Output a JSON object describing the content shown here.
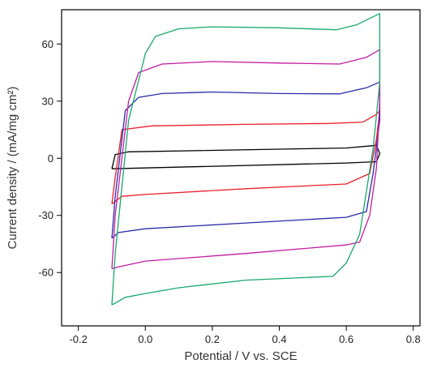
{
  "chart_data": {
    "type": "line",
    "title": "",
    "xlabel": "Potential / V vs. SCE",
    "ylabel": "Current density / (mA/mg cm²)",
    "xlim": [
      -0.25,
      0.82
    ],
    "ylim": [
      -88,
      78
    ],
    "xticks": [
      -0.2,
      0.0,
      0.2,
      0.4,
      0.6,
      0.8
    ],
    "xtick_labels": [
      "-0.2",
      "0.0",
      "0.2",
      "0.4",
      "0.6",
      "0.8"
    ],
    "yticks": [
      -60,
      -30,
      0,
      30,
      60
    ],
    "ytick_labels": [
      "-60",
      "-30",
      "0",
      "30",
      "60"
    ],
    "legend": "none",
    "grid": false,
    "series": [
      {
        "color": "#000000",
        "x": [
          -0.1,
          0.6,
          0.69,
          0.7,
          0.69,
          0.6,
          -0.05,
          -0.09,
          -0.1
        ],
        "y": [
          -5.5,
          -2.5,
          -1.8,
          2.5,
          6.8,
          5.4,
          3.4,
          2.0,
          -5.5
        ]
      },
      {
        "color": "#e8202a",
        "x": [
          -0.1,
          -0.09,
          -0.07,
          0.02,
          0.3,
          0.55,
          0.65,
          0.69,
          0.7,
          0.69,
          0.67,
          0.6,
          0.3,
          0.0,
          -0.07,
          -0.1
        ],
        "y": [
          -24.0,
          -10.0,
          15.0,
          17.0,
          17.8,
          18.3,
          19.0,
          23.0,
          25.0,
          10.0,
          -8.0,
          -13.5,
          -16.0,
          -19.0,
          -20.0,
          -24.0
        ]
      },
      {
        "color": "#2a2aa8",
        "x": [
          -0.1,
          -0.09,
          -0.06,
          -0.02,
          0.05,
          0.2,
          0.4,
          0.58,
          0.66,
          0.7,
          0.7,
          0.68,
          0.66,
          0.6,
          0.3,
          0.0,
          -0.08,
          -0.1
        ],
        "y": [
          -42.0,
          -20.0,
          25.0,
          32.0,
          34.0,
          34.8,
          34.0,
          33.8,
          37.0,
          40.0,
          20.0,
          -8.0,
          -28.0,
          -31.0,
          -34.0,
          -37.0,
          -39.0,
          -42.0
        ]
      },
      {
        "color": "#c21ca0",
        "x": [
          -0.1,
          -0.09,
          -0.05,
          -0.02,
          0.05,
          0.2,
          0.4,
          0.58,
          0.66,
          0.7,
          0.7,
          0.69,
          0.67,
          0.64,
          0.6,
          0.3,
          0.0,
          -0.08,
          -0.1
        ],
        "y": [
          -58.0,
          -30.0,
          30.0,
          45.0,
          49.5,
          50.8,
          50.0,
          49.5,
          53.0,
          57.0,
          30.0,
          -5.0,
          -30.0,
          -44.0,
          -45.5,
          -50.0,
          -54.0,
          -57.0,
          -58.0
        ]
      },
      {
        "color": "#1aa86a",
        "x": [
          -0.1,
          -0.09,
          -0.05,
          0.0,
          0.03,
          0.1,
          0.2,
          0.4,
          0.57,
          0.63,
          0.7,
          0.7,
          0.68,
          0.64,
          0.6,
          0.56,
          0.3,
          0.1,
          0.0,
          -0.06,
          -0.1
        ],
        "y": [
          -77.0,
          -50.0,
          20.0,
          55.0,
          64.0,
          68.0,
          69.0,
          68.5,
          67.5,
          70.0,
          76.0,
          40.0,
          5.0,
          -40.0,
          -55.0,
          -62.0,
          -64.0,
          -68.0,
          -71.0,
          -73.0,
          -77.0
        ]
      }
    ]
  }
}
